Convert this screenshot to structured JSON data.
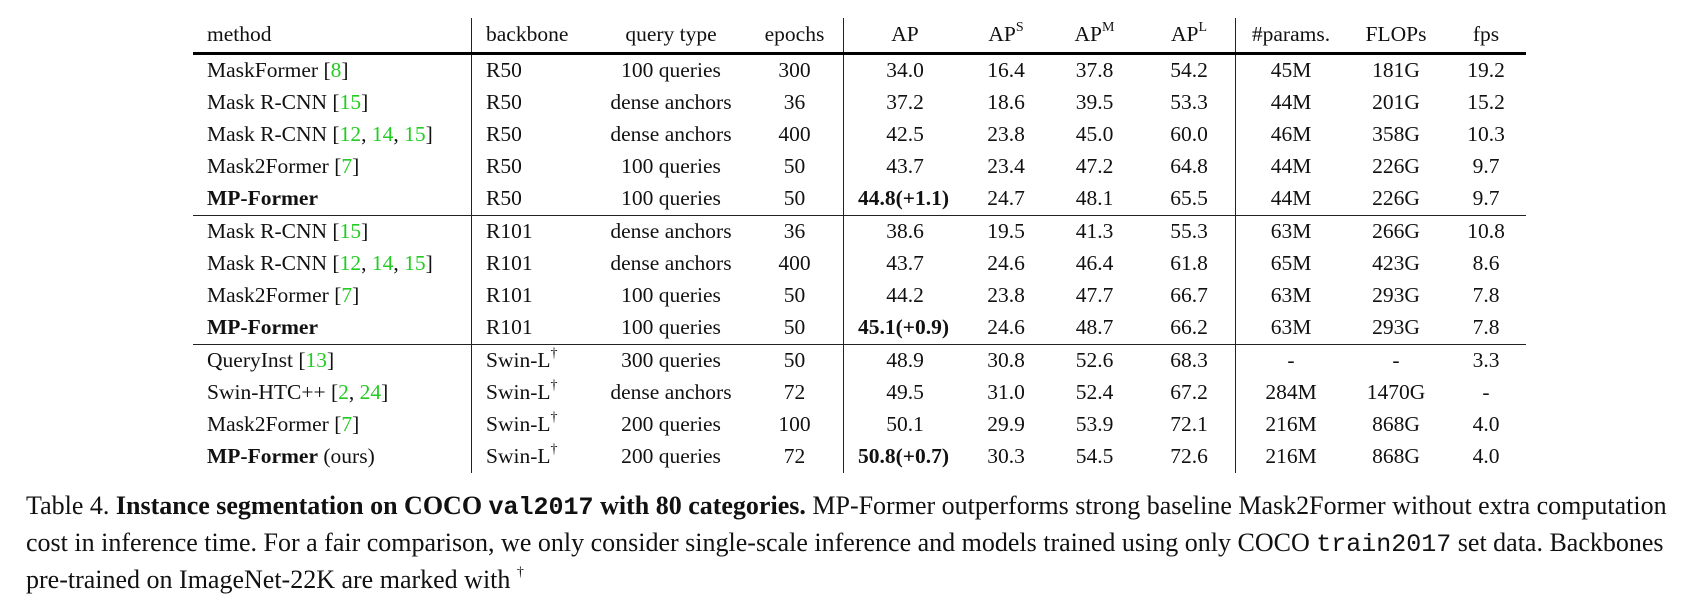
{
  "table": {
    "headers": {
      "method": "method",
      "backbone": "backbone",
      "query_type": "query type",
      "epochs": "epochs",
      "ap": "AP",
      "aps_base": "AP",
      "aps_sup": "S",
      "apm_base": "AP",
      "apm_sup": "M",
      "apl_base": "AP",
      "apl_sup": "L",
      "params": "#params.",
      "flops": "FLOPs",
      "fps": "fps"
    },
    "rows": [
      {
        "method": "MaskFormer",
        "suffix": "",
        "cites": [
          "8"
        ],
        "bold_method": false,
        "backbone": "R50",
        "dagger": false,
        "query": "100 queries",
        "epochs": "300",
        "ap": "34.0",
        "ap_delta": "",
        "aps": "16.4",
        "apm": "37.8",
        "apl": "54.2",
        "params": "45M",
        "flops": "181G",
        "fps": "19.2",
        "bold": []
      },
      {
        "method": "Mask R-CNN",
        "suffix": "",
        "cites": [
          "15"
        ],
        "bold_method": false,
        "backbone": "R50",
        "dagger": false,
        "query": "dense anchors",
        "epochs": "36",
        "ap": "37.2",
        "ap_delta": "",
        "aps": "18.6",
        "apm": "39.5",
        "apl": "53.3",
        "params": "44M",
        "flops": "201G",
        "fps": "15.2",
        "bold": []
      },
      {
        "method": "Mask R-CNN",
        "suffix": "",
        "cites": [
          "12",
          "14",
          "15"
        ],
        "bold_method": false,
        "backbone": "R50",
        "dagger": false,
        "query": "dense anchors",
        "epochs": "400",
        "ap": "42.5",
        "ap_delta": "",
        "aps": "23.8",
        "apm": "45.0",
        "apl": "60.0",
        "params": "46M",
        "flops": "358G",
        "fps": "10.3",
        "bold": []
      },
      {
        "method": "Mask2Former",
        "suffix": "",
        "cites": [
          "7"
        ],
        "bold_method": false,
        "backbone": "R50",
        "dagger": false,
        "query": "100 queries",
        "epochs": "50",
        "ap": "43.7",
        "ap_delta": "",
        "aps": "23.4",
        "apm": "47.2",
        "apl": "64.8",
        "params": "44M",
        "flops": "226G",
        "fps": "9.7",
        "bold": []
      },
      {
        "method": "MP-Former",
        "suffix": "",
        "cites": [],
        "bold_method": true,
        "backbone": "R50",
        "dagger": false,
        "query": "100 queries",
        "epochs": "50",
        "ap": "44.8",
        "ap_delta": "(+1.1)",
        "aps": "24.7",
        "apm": "48.1",
        "apl": "65.5",
        "params": "44M",
        "flops": "226G",
        "fps": "9.7",
        "bold": [
          "ap",
          "aps",
          "apm",
          "apl"
        ]
      },
      {
        "method": "Mask R-CNN",
        "suffix": "",
        "cites": [
          "15"
        ],
        "bold_method": false,
        "backbone": "R101",
        "dagger": false,
        "query": "dense anchors",
        "epochs": "36",
        "ap": "38.6",
        "ap_delta": "",
        "aps": "19.5",
        "apm": "41.3",
        "apl": "55.3",
        "params": "63M",
        "flops": "266G",
        "fps": "10.8",
        "bold": []
      },
      {
        "method": "Mask R-CNN",
        "suffix": "",
        "cites": [
          "12",
          "14",
          "15"
        ],
        "bold_method": false,
        "backbone": "R101",
        "dagger": false,
        "query": "dense anchors",
        "epochs": "400",
        "ap": "43.7",
        "ap_delta": "",
        "aps": "24.6",
        "apm": "46.4",
        "apl": "61.8",
        "params": "65M",
        "flops": "423G",
        "fps": "8.6",
        "bold": [
          "aps"
        ]
      },
      {
        "method": "Mask2Former",
        "suffix": "",
        "cites": [
          "7"
        ],
        "bold_method": false,
        "backbone": "R101",
        "dagger": false,
        "query": "100 queries",
        "epochs": "50",
        "ap": "44.2",
        "ap_delta": "",
        "aps": "23.8",
        "apm": "47.7",
        "apl": "66.7",
        "params": "63M",
        "flops": "293G",
        "fps": "7.8",
        "bold": [
          "apl"
        ]
      },
      {
        "method": "MP-Former",
        "suffix": "",
        "cites": [],
        "bold_method": true,
        "backbone": "R101",
        "dagger": false,
        "query": "100 queries",
        "epochs": "50",
        "ap": "45.1",
        "ap_delta": "(+0.9)",
        "aps": "24.6",
        "apm": "48.7",
        "apl": "66.2",
        "params": "63M",
        "flops": "293G",
        "fps": "7.8",
        "bold": [
          "ap",
          "aps",
          "apm"
        ]
      },
      {
        "method": "QueryInst",
        "suffix": "",
        "cites": [
          "13"
        ],
        "bold_method": false,
        "backbone": "Swin-L",
        "dagger": true,
        "query": "300 queries",
        "epochs": "50",
        "ap": "48.9",
        "ap_delta": "",
        "aps": "30.8",
        "apm": "52.6",
        "apl": "68.3",
        "params": "-",
        "flops": "-",
        "fps": "3.3",
        "bold": []
      },
      {
        "method": "Swin-HTC++",
        "suffix": "",
        "cites": [
          "2",
          "24"
        ],
        "bold_method": false,
        "backbone": "Swin-L",
        "dagger": true,
        "query": "dense anchors",
        "epochs": "72",
        "ap": "49.5",
        "ap_delta": "",
        "aps": "31.0",
        "apm": "52.4",
        "apl": "67.2",
        "params": "284M",
        "flops": "1470G",
        "fps": "-",
        "bold": []
      },
      {
        "method": "Mask2Former",
        "suffix": "",
        "cites": [
          "7"
        ],
        "bold_method": false,
        "backbone": "Swin-L",
        "dagger": true,
        "query": "200 queries",
        "epochs": "100",
        "ap": "50.1",
        "ap_delta": "",
        "aps": "29.9",
        "apm": "53.9",
        "apl": "72.1",
        "params": "216M",
        "flops": "868G",
        "fps": "4.0",
        "bold": []
      },
      {
        "method": "MP-Former",
        "suffix": " (ours)",
        "cites": [],
        "bold_method": true,
        "backbone": "Swin-L",
        "dagger": true,
        "query": "200 queries",
        "epochs": "72",
        "ap": "50.8",
        "ap_delta": "(+0.7)",
        "aps": "30.3",
        "apm": "54.5",
        "apl": "72.6",
        "params": "216M",
        "flops": "868G",
        "fps": "4.0",
        "bold": [
          "ap",
          "apm",
          "apl"
        ]
      }
    ],
    "section_ends": [
      4,
      8
    ],
    "cite_color": "#22cc22",
    "dagger_symbol": "†"
  },
  "caption": {
    "label": "Table 4.",
    "title_pre": "Instance segmentation on COCO ",
    "title_code": "val2017",
    "title_post": " with 80 categories.",
    "body_1": " MP-Former outperforms strong baseline Mask2Former without extra computation cost in inference time. For a fair comparison, we only consider single-scale inference and models trained using only COCO ",
    "body_code": "train2017",
    "body_2": " set data. Backbones pre-trained on ImageNet-22K are marked with ",
    "dagger": "†"
  },
  "chart_data": {
    "type": "table",
    "title": "Table 4. Instance segmentation on COCO val2017 with 80 categories.",
    "columns": [
      "method",
      "backbone",
      "query type",
      "epochs",
      "AP",
      "AP^S",
      "AP^M",
      "AP^L",
      "#params.",
      "FLOPs",
      "fps"
    ],
    "rows": [
      [
        "MaskFormer [8]",
        "R50",
        "100 queries",
        300,
        34.0,
        16.4,
        37.8,
        54.2,
        "45M",
        "181G",
        19.2
      ],
      [
        "Mask R-CNN [15]",
        "R50",
        "dense anchors",
        36,
        37.2,
        18.6,
        39.5,
        53.3,
        "44M",
        "201G",
        15.2
      ],
      [
        "Mask R-CNN [12,14,15]",
        "R50",
        "dense anchors",
        400,
        42.5,
        23.8,
        45.0,
        60.0,
        "46M",
        "358G",
        10.3
      ],
      [
        "Mask2Former [7]",
        "R50",
        "100 queries",
        50,
        43.7,
        23.4,
        47.2,
        64.8,
        "44M",
        "226G",
        9.7
      ],
      [
        "MP-Former",
        "R50",
        "100 queries",
        50,
        "44.8(+1.1)",
        24.7,
        48.1,
        65.5,
        "44M",
        "226G",
        9.7
      ],
      [
        "Mask R-CNN [15]",
        "R101",
        "dense anchors",
        36,
        38.6,
        19.5,
        41.3,
        55.3,
        "63M",
        "266G",
        10.8
      ],
      [
        "Mask R-CNN [12,14,15]",
        "R101",
        "dense anchors",
        400,
        43.7,
        24.6,
        46.4,
        61.8,
        "65M",
        "423G",
        8.6
      ],
      [
        "Mask2Former [7]",
        "R101",
        "100 queries",
        50,
        44.2,
        23.8,
        47.7,
        66.7,
        "63M",
        "293G",
        7.8
      ],
      [
        "MP-Former",
        "R101",
        "100 queries",
        50,
        "45.1(+0.9)",
        24.6,
        48.7,
        66.2,
        "63M",
        "293G",
        7.8
      ],
      [
        "QueryInst [13]",
        "Swin-L†",
        "300 queries",
        50,
        48.9,
        30.8,
        52.6,
        68.3,
        "-",
        "-",
        3.3
      ],
      [
        "Swin-HTC++ [2,24]",
        "Swin-L†",
        "dense anchors",
        72,
        49.5,
        31.0,
        52.4,
        67.2,
        "284M",
        "1470G",
        "-"
      ],
      [
        "Mask2Former [7]",
        "Swin-L†",
        "200 queries",
        100,
        50.1,
        29.9,
        53.9,
        72.1,
        "216M",
        "868G",
        4.0
      ],
      [
        "MP-Former (ours)",
        "Swin-L†",
        "200 queries",
        72,
        "50.8(+0.7)",
        30.3,
        54.5,
        72.6,
        "216M",
        "868G",
        4.0
      ]
    ]
  }
}
